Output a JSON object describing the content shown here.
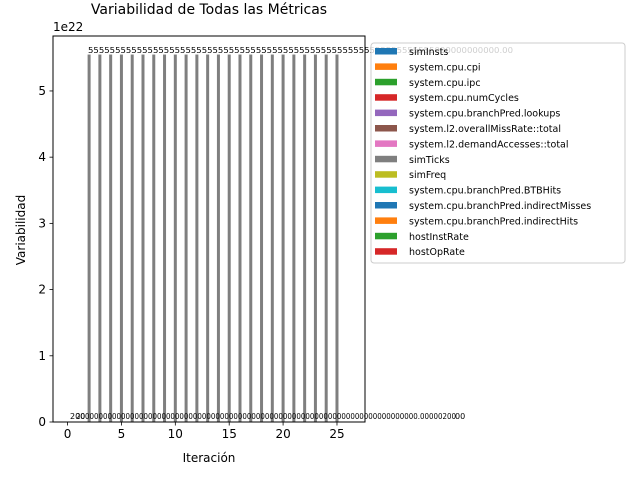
{
  "chart_data": {
    "type": "bar",
    "title": "Variabilidad de Todas las Métricas",
    "xlabel": "Iteración",
    "ylabel": "Variabilidad",
    "y_offset_label": "1e22",
    "xlim": [
      -1.35,
      27.6
    ],
    "ylim": [
      0,
      5.83
    ],
    "x_ticks": [
      0,
      5,
      10,
      15,
      20,
      25
    ],
    "y_ticks": [
      0,
      1,
      2,
      3,
      4,
      5
    ],
    "grid": false,
    "legend_position": "upper-right-outside",
    "series": [
      {
        "name": "simInsts",
        "color": "#1f77b4"
      },
      {
        "name": "system.cpu.cpi",
        "color": "#ff7f0e"
      },
      {
        "name": "system.cpu.ipc",
        "color": "#2ca02c"
      },
      {
        "name": "system.cpu.numCycles",
        "color": "#d62728"
      },
      {
        "name": "system.cpu.branchPred.lookups",
        "color": "#9467bd"
      },
      {
        "name": "system.l2.overallMissRate::total",
        "color": "#8c564b"
      },
      {
        "name": "system.l2.demandAccesses::total",
        "color": "#e377c2"
      },
      {
        "name": "simTicks",
        "color": "#7f7f7f",
        "x": [
          2,
          3,
          4,
          5,
          6,
          7,
          8,
          9,
          10,
          11,
          12,
          13,
          14,
          15,
          16,
          17,
          18,
          19,
          20,
          21,
          22,
          23,
          24,
          25
        ],
        "values": [
          5.55,
          5.55,
          5.55,
          5.55,
          5.55,
          5.55,
          5.55,
          5.55,
          5.55,
          5.55,
          5.55,
          5.55,
          5.55,
          5.55,
          5.55,
          5.55,
          5.55,
          5.55,
          5.55,
          5.55,
          5.55,
          5.55,
          5.55,
          5.55
        ]
      },
      {
        "name": "simFreq",
        "color": "#bcbd22"
      },
      {
        "name": "system.cpu.branchPred.BTBHits",
        "color": "#17becf"
      },
      {
        "name": "system.cpu.branchPred.indirectMisses",
        "color": "#1f77b4"
      },
      {
        "name": "system.cpu.branchPred.indirectHits",
        "color": "#ff7f0e"
      },
      {
        "name": "hostInstRate",
        "color": "#2ca02c"
      },
      {
        "name": "hostOpRate",
        "color": "#d62728"
      }
    ],
    "annotations": {
      "top_label_text": "5555555555555555555555555555555555555555555555555555555555555555000000000000.00",
      "bottom_label_text": "2000000000000000000000000000000000000000000000000000000000000000000000000000.00000200",
      "bottom_right_tail": "00",
      "bottom_left_stub": "200"
    }
  }
}
